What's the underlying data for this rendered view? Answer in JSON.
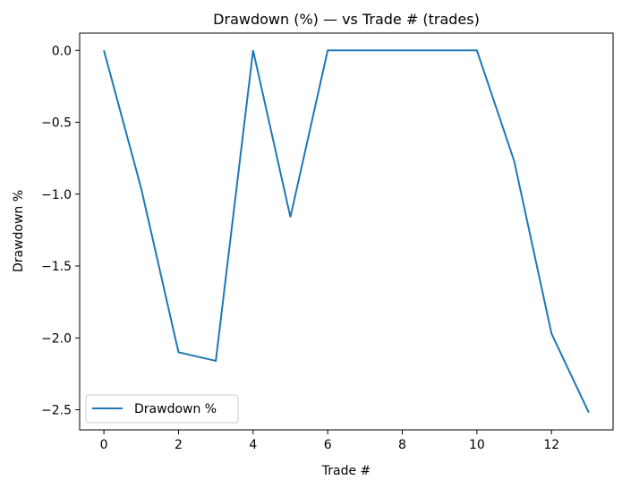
{
  "chart_data": {
    "type": "line",
    "title": "Drawdown (%) — vs Trade # (trades)",
    "xlabel": "Trade #",
    "ylabel": "Drawdown %",
    "x": [
      0,
      1,
      2,
      3,
      4,
      5,
      6,
      7,
      8,
      9,
      10,
      11,
      12,
      13
    ],
    "series": [
      {
        "name": "Drawdown %",
        "color": "#1f77b4",
        "values": [
          0,
          -0.96,
          -2.1,
          -2.16,
          0,
          -1.16,
          0,
          0,
          0,
          0,
          0,
          -0.77,
          -1.97,
          -2.52
        ]
      }
    ],
    "xlim": [
      -0.65,
      13.65
    ],
    "ylim": [
      -2.64,
      0.12
    ],
    "xticks": [
      0,
      2,
      4,
      6,
      8,
      10,
      12
    ],
    "xtick_labels": [
      "0",
      "2",
      "4",
      "6",
      "8",
      "10",
      "12"
    ],
    "yticks": [
      0,
      -0.5,
      -1,
      -1.5,
      -2,
      -2.5
    ],
    "ytick_labels": [
      "0.0",
      "−0.5",
      "−1.0",
      "−1.5",
      "−2.0",
      "−2.5"
    ],
    "grid": false,
    "legend": "lower-left"
  }
}
